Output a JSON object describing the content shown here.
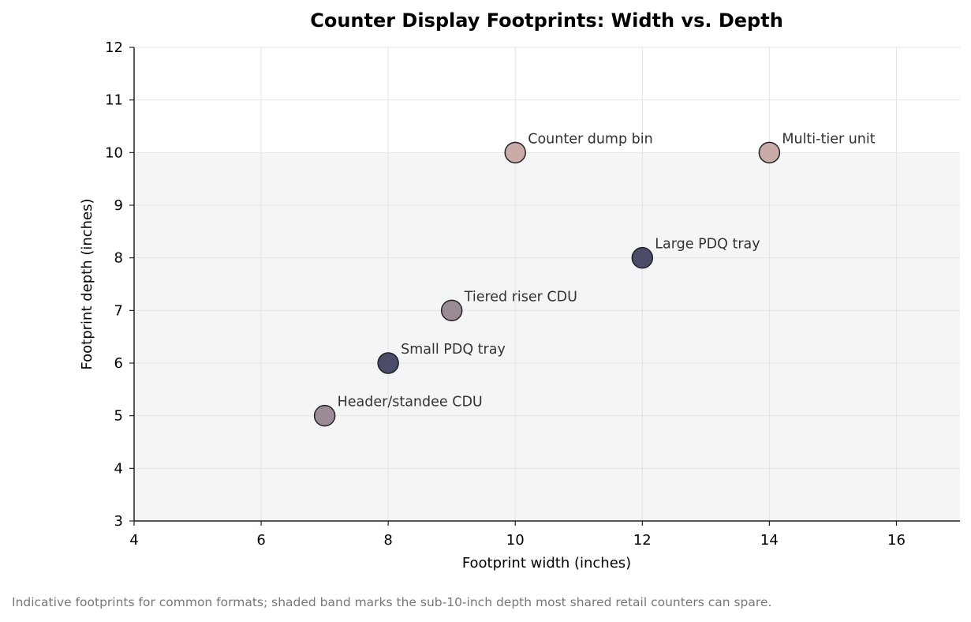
{
  "chart_data": {
    "type": "scatter",
    "title": "Counter Display Footprints: Width vs. Depth",
    "xlabel": "Footprint width (inches)",
    "ylabel": "Footprint depth (inches)",
    "xlim": [
      4,
      17
    ],
    "ylim": [
      3,
      12
    ],
    "xticks": [
      "4",
      "6",
      "8",
      "10",
      "12",
      "14",
      "16"
    ],
    "yticks": [
      "3",
      "4",
      "5",
      "6",
      "7",
      "8",
      "9",
      "10",
      "11",
      "12"
    ],
    "grid": true,
    "shaded_band": {
      "y_from": 3,
      "y_to": 10,
      "color": "#f4f5f7"
    },
    "points": [
      {
        "label": "Header/standee CDU",
        "x": 7,
        "y": 5,
        "color": "#9a8b96"
      },
      {
        "label": "Small PDQ tray",
        "x": 8,
        "y": 6,
        "color": "#4a4c6a"
      },
      {
        "label": "Tiered riser CDU",
        "x": 9,
        "y": 7,
        "color": "#9a8b96"
      },
      {
        "label": "Counter dump bin",
        "x": 10,
        "y": 10,
        "color": "#c9aca7"
      },
      {
        "label": "Large PDQ tray",
        "x": 12,
        "y": 8,
        "color": "#4a4c6a"
      },
      {
        "label": "Multi-tier unit",
        "x": 14,
        "y": 10,
        "color": "#c9aca7"
      }
    ]
  },
  "caption": "Indicative footprints for common formats; shaded band marks the sub-10-inch depth most shared retail counters can spare."
}
